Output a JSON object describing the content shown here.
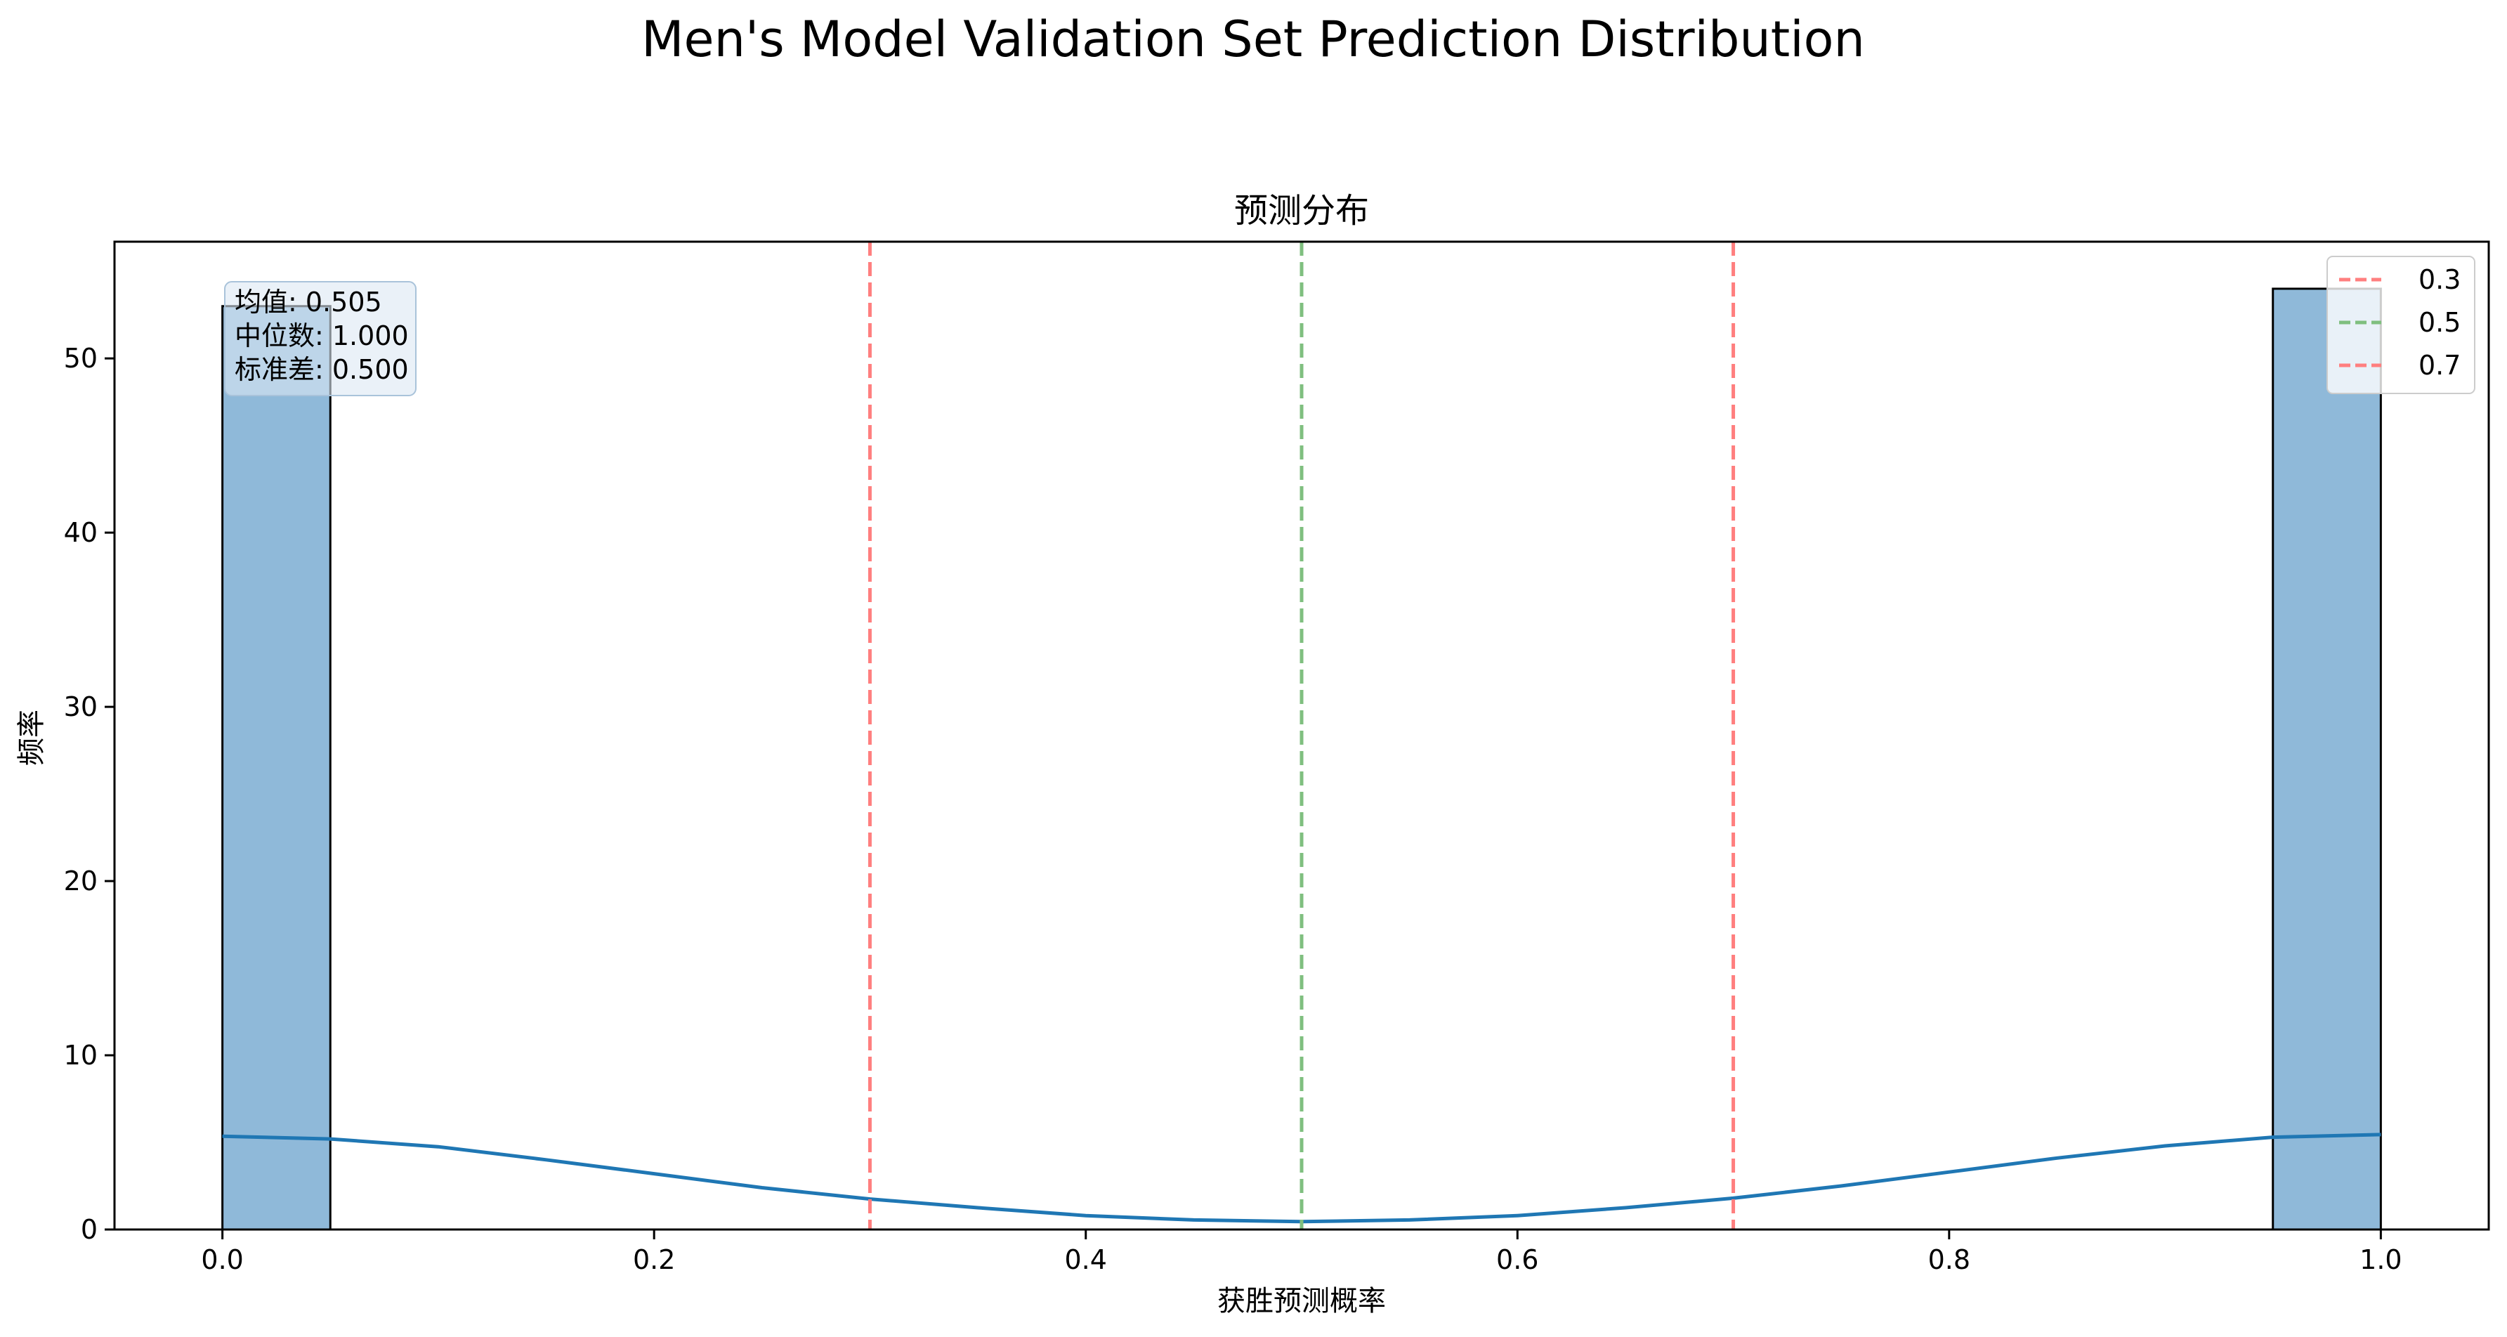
{
  "figure": {
    "suptitle": "Men's Model Validation Set Prediction Distribution"
  },
  "chart_data": {
    "type": "bar",
    "title": "预测分布",
    "xlabel": "获胜预测概率",
    "ylabel": "频率",
    "xlim": [
      -0.05,
      1.05
    ],
    "ylim": [
      0,
      56.7
    ],
    "xticks": [
      0.0,
      0.2,
      0.4,
      0.6,
      0.8,
      1.0
    ],
    "xtick_labels": [
      "0.0",
      "0.2",
      "0.4",
      "0.6",
      "0.8",
      "1.0"
    ],
    "yticks": [
      0,
      10,
      20,
      30,
      40,
      50
    ],
    "ytick_labels": [
      "0",
      "10",
      "20",
      "30",
      "40",
      "50"
    ],
    "bins": [
      {
        "x0": 0.0,
        "x1": 0.05,
        "count": 53
      },
      {
        "x0": 0.95,
        "x1": 1.0,
        "count": 54
      }
    ],
    "kde": {
      "x": [
        0.0,
        0.05,
        0.1,
        0.15,
        0.2,
        0.25,
        0.3,
        0.35,
        0.4,
        0.45,
        0.5,
        0.55,
        0.6,
        0.65,
        0.7,
        0.75,
        0.8,
        0.85,
        0.9,
        0.95,
        1.0
      ],
      "y": [
        5.35,
        5.2,
        4.75,
        4.0,
        3.2,
        2.4,
        1.75,
        1.25,
        0.8,
        0.55,
        0.45,
        0.55,
        0.8,
        1.25,
        1.8,
        2.5,
        3.3,
        4.1,
        4.8,
        5.3,
        5.45
      ]
    },
    "vlines": [
      {
        "x": 0.3,
        "label": "0.3",
        "color": "#ff7f7f"
      },
      {
        "x": 0.5,
        "label": "0.5",
        "color": "#7fbf7f"
      },
      {
        "x": 0.7,
        "label": "0.7",
        "color": "#ff7f7f"
      }
    ],
    "stats": [
      "均值: 0.505",
      "中位数: 1.000",
      "标准差: 0.500"
    ],
    "legend": "upper right",
    "grid": false,
    "colors": {
      "bar_fill": "#8fb9d9",
      "bar_edge": "#000000",
      "kde": "#1f77b4",
      "stats_box": "#dce8f3"
    }
  }
}
